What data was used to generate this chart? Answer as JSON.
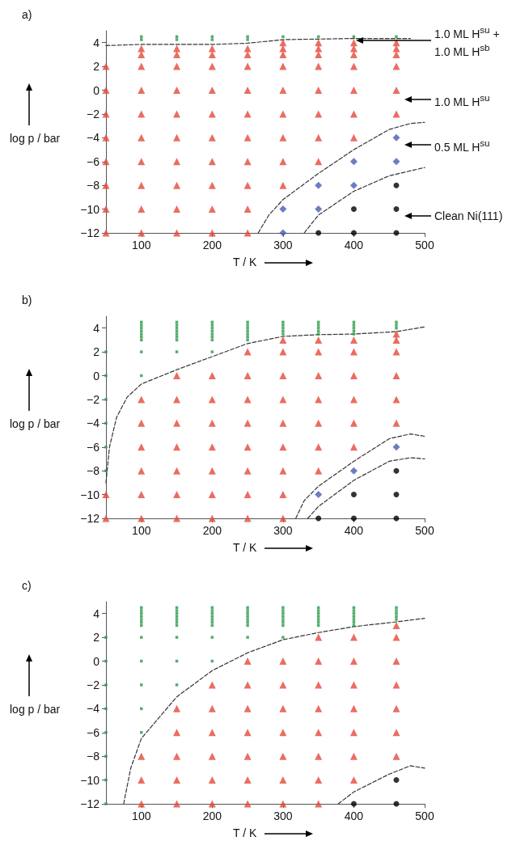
{
  "chart_data": [
    {
      "type": "scatter",
      "title": "a)",
      "xlabel": "T / K",
      "ylabel": "log p / bar",
      "xlim": [
        50,
        500
      ],
      "xticks": [
        100,
        200,
        300,
        400,
        500
      ],
      "ylim": [
        -12,
        5
      ],
      "yticks": [
        -12,
        -10,
        -8,
        -6,
        -4,
        -2,
        0,
        2,
        4
      ],
      "annotations": [
        "1.0 ML H$^{su}$ + 1.0 ML H$^{sb}$",
        "1.0 ML H$^{su}$",
        "0.5 ML H$^{su}$",
        "Clean Ni(111)"
      ],
      "series": [
        {
          "type": "scatter",
          "marker": "triangle",
          "color": "#e5493a",
          "x": [
            50,
            50,
            50,
            50,
            50,
            50,
            50,
            50,
            100,
            100,
            100,
            100,
            100,
            100,
            100,
            100,
            100,
            100,
            150,
            150,
            150,
            150,
            150,
            150,
            150,
            150,
            150,
            150,
            200,
            200,
            200,
            200,
            200,
            200,
            200,
            200,
            200,
            200,
            250,
            250,
            250,
            250,
            250,
            250,
            250,
            250,
            250,
            250,
            300,
            300,
            300,
            300,
            300,
            300,
            300,
            300,
            300,
            350,
            350,
            350,
            350,
            350,
            350,
            350,
            350,
            400,
            400,
            400,
            400,
            400,
            400,
            400,
            460,
            460,
            460,
            460,
            460,
            460
          ],
          "values": [
            -12,
            -10,
            -8,
            -6,
            -4,
            -2,
            0,
            2,
            -12,
            -10,
            -8,
            -6,
            -4,
            -2,
            0,
            2,
            3,
            3.5,
            -12,
            -10,
            -8,
            -6,
            -4,
            -2,
            0,
            2,
            3,
            3.5,
            -12,
            -10,
            -8,
            -6,
            -4,
            -2,
            0,
            2,
            3,
            3.5,
            -12,
            -10,
            -8,
            -6,
            -4,
            -2,
            0,
            2,
            3,
            3.5,
            -8,
            -6,
            -4,
            -2,
            0,
            2,
            3,
            3.5,
            4,
            -6,
            -4,
            -2,
            0,
            2,
            3,
            3.5,
            4,
            -4,
            -2,
            0,
            2,
            3,
            3.5,
            4,
            -2,
            0,
            2,
            3,
            3.5,
            4
          ]
        },
        {
          "type": "scatter",
          "marker": "square",
          "color": "#2a9a48",
          "x": [
            100,
            100,
            150,
            150,
            200,
            200,
            250,
            250,
            300,
            350,
            400,
            460
          ],
          "values": [
            4.25,
            4.5,
            4.25,
            4.5,
            4.25,
            4.5,
            4.25,
            4.5,
            4.5,
            4.5,
            4.5,
            4.5
          ]
        },
        {
          "type": "scatter",
          "marker": "diamond",
          "color": "#4a5cb0",
          "x": [
            300,
            300,
            350,
            350,
            400,
            400,
            460,
            460
          ],
          "values": [
            -12,
            -10,
            -10,
            -8,
            -8,
            -6,
            -6,
            -4
          ]
        },
        {
          "type": "scatter",
          "marker": "circle",
          "color": "#000000",
          "x": [
            350,
            400,
            400,
            460,
            460,
            460
          ],
          "values": [
            -12,
            -12,
            -10,
            -12,
            -10,
            -8
          ]
        },
        {
          "type": "line",
          "marker": "none",
          "line_style": "dashed",
          "color": "#333333",
          "x": [
            50,
            100,
            150,
            200,
            250,
            300,
            350,
            400,
            460,
            480
          ],
          "values": [
            3.75,
            3.85,
            3.85,
            3.85,
            3.95,
            4.25,
            4.3,
            4.35,
            4.35,
            4.35
          ]
        },
        {
          "type": "line",
          "marker": "none",
          "line_style": "dashed",
          "color": "#333333",
          "x": [
            265,
            280,
            300,
            350,
            400,
            450,
            480,
            500
          ],
          "values": [
            -12,
            -10.5,
            -9.2,
            -7,
            -5,
            -3.3,
            -2.8,
            -2.7
          ]
        },
        {
          "type": "line",
          "marker": "none",
          "line_style": "dashed",
          "color": "#333333",
          "x": [
            330,
            350,
            400,
            450,
            500
          ],
          "values": [
            -12,
            -10.5,
            -8.5,
            -7.2,
            -6.5
          ]
        }
      ]
    },
    {
      "type": "scatter",
      "title": "b)",
      "xlabel": "T / K",
      "ylabel": "log p / bar",
      "xlim": [
        50,
        500
      ],
      "xticks": [
        100,
        200,
        300,
        400,
        500
      ],
      "ylim": [
        -12,
        5
      ],
      "yticks": [
        -12,
        -10,
        -8,
        -6,
        -4,
        -2,
        0,
        2,
        4
      ],
      "series": [
        {
          "type": "scatter",
          "marker": "triangle",
          "color": "#e5493a",
          "x": [
            50,
            50,
            100,
            100,
            100,
            100,
            100,
            100,
            150,
            150,
            150,
            150,
            150,
            150,
            150,
            200,
            200,
            200,
            200,
            200,
            200,
            200,
            250,
            250,
            250,
            250,
            250,
            250,
            250,
            250,
            300,
            300,
            300,
            300,
            300,
            300,
            300,
            300,
            300,
            350,
            350,
            350,
            350,
            350,
            350,
            350,
            400,
            400,
            400,
            400,
            400,
            400,
            460,
            460,
            460,
            460,
            460,
            460
          ],
          "values": [
            -10,
            -12,
            -2,
            -4,
            -6,
            -8,
            -10,
            -12,
            0,
            -2,
            -4,
            -6,
            -8,
            -10,
            -12,
            0,
            -2,
            -4,
            -6,
            -8,
            -10,
            -12,
            2,
            0,
            -2,
            -4,
            -6,
            -8,
            -10,
            -12,
            3,
            2,
            0,
            -2,
            -4,
            -6,
            -8,
            -10,
            -12,
            3,
            2,
            0,
            -2,
            -4,
            -6,
            -8,
            3,
            2,
            0,
            -2,
            -4,
            -6,
            3.5,
            3,
            2,
            0,
            -2,
            -4
          ]
        },
        {
          "type": "scatter",
          "marker": "square",
          "color": "#2a9a48",
          "x": [
            50,
            50,
            50,
            50,
            50,
            50,
            100,
            100,
            100,
            100,
            100,
            100,
            100,
            100,
            100,
            150,
            150,
            150,
            150,
            150,
            150,
            150,
            150,
            200,
            200,
            200,
            200,
            200,
            200,
            200,
            200,
            250,
            250,
            250,
            250,
            250,
            250,
            250,
            300,
            300,
            300,
            300,
            300,
            350,
            350,
            350,
            350,
            350,
            400,
            400,
            400,
            400,
            400,
            460,
            460,
            460
          ],
          "values": [
            2,
            0,
            -2,
            -4,
            -6,
            -8,
            3,
            3.25,
            3.5,
            3.75,
            4,
            4.25,
            4.5,
            2,
            0,
            3,
            3.25,
            3.5,
            3.75,
            4,
            4.25,
            4.5,
            2,
            3,
            3.25,
            3.5,
            3.75,
            4,
            4.25,
            4.5,
            2,
            3,
            3.25,
            3.5,
            3.75,
            4,
            4.25,
            4.5,
            3.5,
            3.75,
            4,
            4.25,
            4.5,
            3.5,
            3.75,
            4,
            4.25,
            4.5,
            3.5,
            3.75,
            4,
            4.25,
            4.5,
            4,
            4.25,
            4.5
          ]
        },
        {
          "type": "scatter",
          "marker": "diamond",
          "color": "#4a5cb0",
          "x": [
            350,
            400,
            460
          ],
          "values": [
            -10,
            -8,
            -6
          ]
        },
        {
          "type": "scatter",
          "marker": "circle",
          "color": "#000000",
          "x": [
            350,
            400,
            400,
            460,
            460,
            460
          ],
          "values": [
            -12,
            -10,
            -12,
            -8,
            -10,
            -12
          ]
        },
        {
          "type": "line",
          "marker": "none",
          "line_style": "dashed",
          "color": "#333333",
          "x": [
            50,
            55,
            65,
            80,
            100,
            150,
            200,
            250,
            300,
            350,
            400,
            460,
            500
          ],
          "values": [
            -9,
            -6,
            -3.5,
            -1.8,
            -0.7,
            0.5,
            1.6,
            2.7,
            3.3,
            3.45,
            3.5,
            3.7,
            4.1
          ]
        },
        {
          "type": "line",
          "marker": "none",
          "line_style": "dashed",
          "color": "#333333",
          "x": [
            318,
            330,
            350,
            400,
            450,
            480,
            500
          ],
          "values": [
            -12,
            -10.5,
            -9.3,
            -7.2,
            -5.3,
            -4.9,
            -5.1
          ]
        },
        {
          "type": "line",
          "marker": "none",
          "line_style": "dashed",
          "color": "#333333",
          "x": [
            335,
            350,
            400,
            450,
            480,
            500
          ],
          "values": [
            -12,
            -11,
            -8.8,
            -7.2,
            -6.9,
            -7
          ]
        }
      ]
    },
    {
      "type": "scatter",
      "title": "c)",
      "xlabel": "T / K",
      "ylabel": "log p / bar",
      "xlim": [
        50,
        500
      ],
      "xticks": [
        100,
        200,
        300,
        400,
        500
      ],
      "ylim": [
        -12,
        5
      ],
      "yticks": [
        -12,
        -10,
        -8,
        -6,
        -4,
        -2,
        0,
        2,
        4
      ],
      "series": [
        {
          "type": "scatter",
          "marker": "triangle",
          "color": "#e5493a",
          "x": [
            100,
            100,
            100,
            150,
            150,
            150,
            150,
            150,
            200,
            200,
            200,
            200,
            200,
            200,
            250,
            250,
            250,
            250,
            250,
            250,
            250,
            300,
            300,
            300,
            300,
            300,
            300,
            300,
            350,
            350,
            350,
            350,
            350,
            350,
            350,
            350,
            400,
            400,
            400,
            400,
            400,
            400,
            400,
            460,
            460,
            460,
            460,
            460,
            460,
            460
          ],
          "values": [
            -8,
            -10,
            -12,
            -4,
            -6,
            -8,
            -10,
            -12,
            -2,
            -4,
            -6,
            -8,
            -10,
            -12,
            0,
            -2,
            -4,
            -6,
            -8,
            -10,
            -12,
            0,
            -2,
            -4,
            -6,
            -8,
            -10,
            -12,
            2,
            0,
            -2,
            -4,
            -6,
            -8,
            -10,
            -12,
            2,
            0,
            -2,
            -4,
            -6,
            -8,
            -10,
            3,
            2,
            0,
            -2,
            -4,
            -6,
            -8
          ]
        },
        {
          "type": "scatter",
          "marker": "square",
          "color": "#2a9a48",
          "x": [
            50,
            50,
            50,
            50,
            50,
            50,
            50,
            50,
            100,
            100,
            100,
            100,
            100,
            100,
            100,
            100,
            100,
            100,
            100,
            100,
            150,
            150,
            150,
            150,
            150,
            150,
            150,
            150,
            150,
            150,
            200,
            200,
            200,
            200,
            200,
            200,
            200,
            200,
            200,
            250,
            250,
            250,
            250,
            250,
            250,
            250,
            250,
            300,
            300,
            300,
            300,
            300,
            300,
            300,
            300,
            350,
            350,
            350,
            350,
            350,
            350,
            350,
            400,
            400,
            400,
            400,
            400,
            400,
            400,
            460,
            460,
            460,
            460,
            460
          ],
          "values": [
            2,
            0,
            -2,
            -4,
            -6,
            -8,
            -10,
            -12,
            3,
            3.25,
            3.5,
            3.75,
            4,
            4.25,
            4.5,
            2,
            0,
            -2,
            -4,
            -6,
            3,
            3.25,
            3.5,
            3.75,
            4,
            4.25,
            4.5,
            2,
            0,
            -2,
            3,
            3.25,
            3.5,
            3.75,
            4,
            4.25,
            4.5,
            2,
            0,
            3,
            3.25,
            3.5,
            3.75,
            4,
            4.25,
            4.5,
            2,
            3,
            3.25,
            3.5,
            3.75,
            4,
            4.25,
            4.5,
            2,
            3,
            3.25,
            3.5,
            3.75,
            4,
            4.25,
            4.5,
            3,
            3.25,
            3.5,
            3.75,
            4,
            4.25,
            4.5,
            3.5,
            3.75,
            4,
            4.25,
            4.5
          ]
        },
        {
          "type": "scatter",
          "marker": "circle",
          "color": "#000000",
          "x": [
            400,
            460,
            460
          ],
          "values": [
            -12,
            -10,
            -12
          ]
        },
        {
          "type": "line",
          "marker": "none",
          "line_style": "dashed",
          "color": "#333333",
          "x": [
            75,
            85,
            100,
            150,
            200,
            250,
            300,
            350,
            400,
            460,
            500
          ],
          "values": [
            -12,
            -9,
            -6.5,
            -3,
            -0.8,
            0.7,
            1.8,
            2.4,
            2.9,
            3.3,
            3.6
          ]
        },
        {
          "type": "line",
          "marker": "none",
          "line_style": "dashed",
          "color": "#333333",
          "x": [
            378,
            400,
            450,
            480,
            500
          ],
          "values": [
            -12,
            -11,
            -9.5,
            -8.8,
            -9
          ]
        }
      ]
    }
  ]
}
